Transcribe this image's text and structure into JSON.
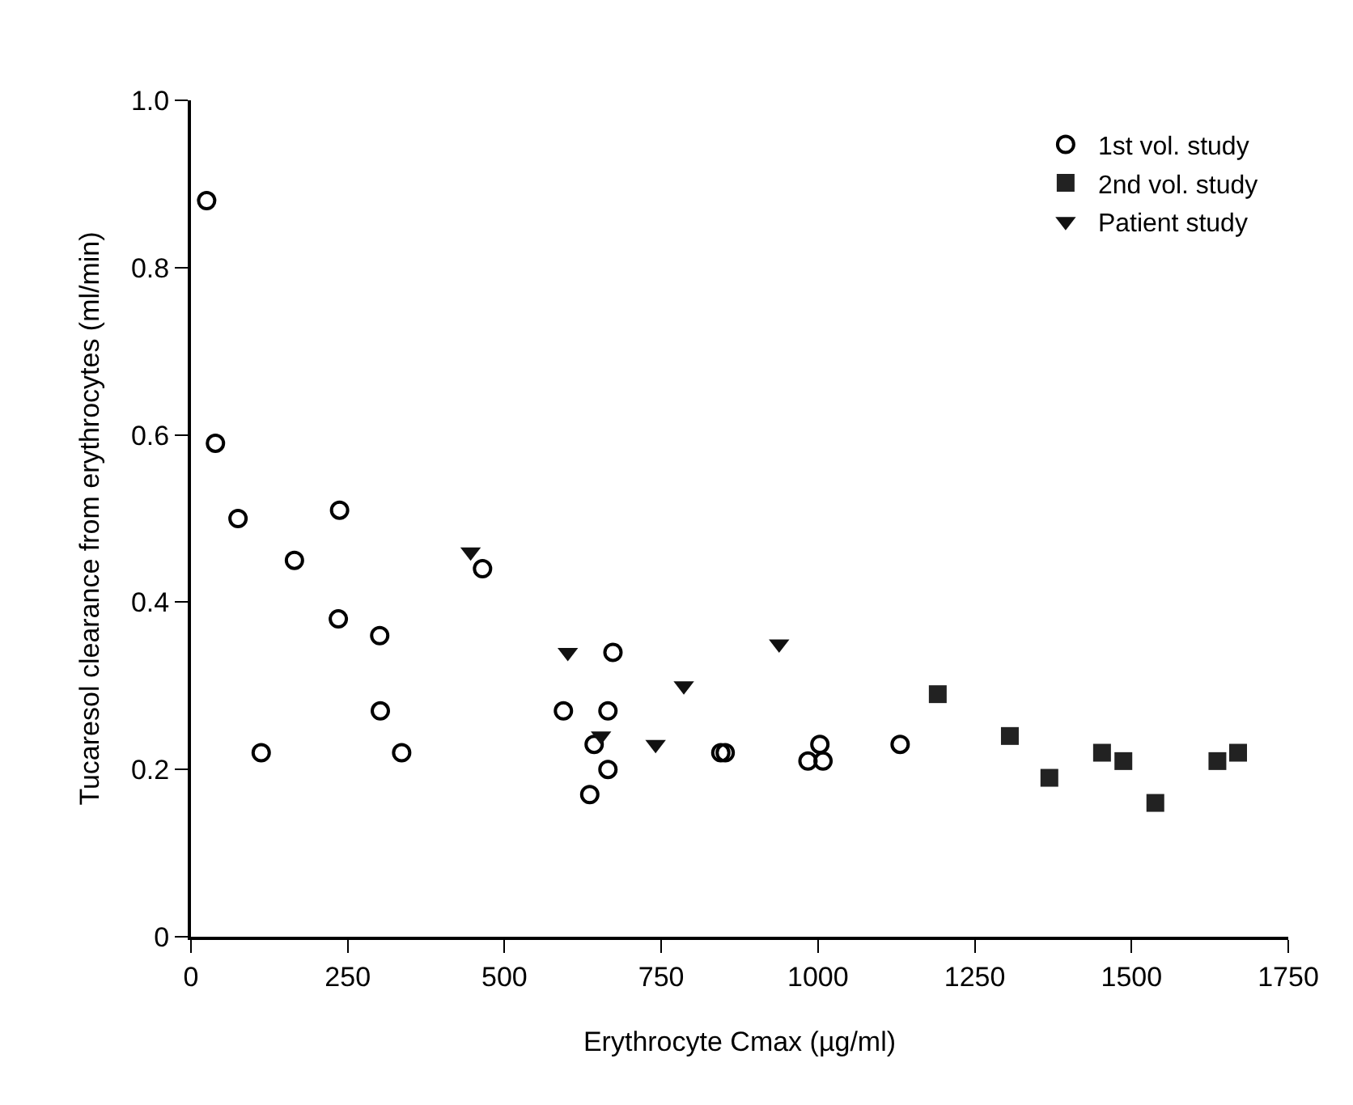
{
  "chart_data": {
    "type": "scatter",
    "xlabel": "Erythrocyte Cmax (µg/ml)",
    "ylabel": "Tucaresol clearance from erythrocytes (ml/min)",
    "xlim": [
      0,
      1750
    ],
    "xticks": [
      0,
      250,
      500,
      750,
      1000,
      1250,
      1500,
      1750
    ],
    "ylim": [
      0,
      1.0
    ],
    "yticks": [
      0,
      0.2,
      0.4,
      0.6,
      0.8,
      {
        "value": 1.0,
        "label": "1.0"
      }
    ],
    "legend": "top right",
    "series": [
      {
        "name": "1st vol. study",
        "color": "#000000",
        "marker": "circle-open",
        "x": [
          25,
          39,
          75,
          112,
          165,
          237,
          235,
          301,
          302,
          336,
          465,
          594,
          673,
          665,
          643,
          665,
          636,
          845,
          852,
          1003,
          984,
          1008,
          1131
        ],
        "values": [
          0.88,
          0.59,
          0.5,
          0.22,
          0.45,
          0.51,
          0.38,
          0.36,
          0.27,
          0.22,
          0.44,
          0.27,
          0.34,
          0.27,
          0.23,
          0.2,
          0.17,
          0.22,
          0.22,
          0.23,
          0.21,
          0.21,
          0.23
        ]
      },
      {
        "name": "2nd vol. study",
        "color": "#222222",
        "marker": "square",
        "x": [
          1191,
          1306,
          1369,
          1453,
          1487,
          1538,
          1637,
          1670
        ],
        "values": [
          0.29,
          0.24,
          0.19,
          0.22,
          0.21,
          0.16,
          0.21,
          0.22
        ]
      },
      {
        "name": "Patient study",
        "color": "#111111",
        "marker": "triangle",
        "x": [
          446,
          601,
          654,
          741,
          786,
          938
        ],
        "values": [
          0.46,
          0.34,
          0.24,
          0.23,
          0.3,
          0.35
        ]
      }
    ]
  }
}
